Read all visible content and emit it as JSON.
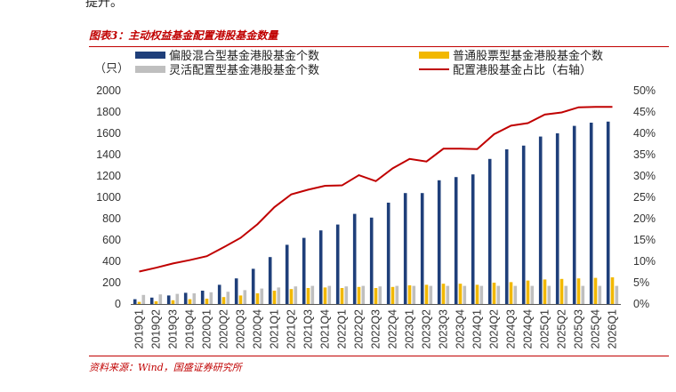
{
  "header_fragment": "提升。",
  "figure_title": "图表3：主动权益基金配置港股基金数量",
  "source": "资料来源：Wind，国盛证券研究所",
  "colors": {
    "series1": "#1f3f7a",
    "series2": "#f2b800",
    "series3": "#bfbfbf",
    "line": "#c00000",
    "accent": "#c00000"
  },
  "chart_data": {
    "type": "bar",
    "title": "主动权益基金配置港股基金数量",
    "ylabel_left": "（只）",
    "ylim": [
      0,
      2000
    ],
    "yticks": [
      0,
      200,
      400,
      600,
      800,
      1000,
      1200,
      1400,
      1600,
      1800,
      2000
    ],
    "ylim_right": [
      0,
      0.5
    ],
    "yticks_right": [
      "0%",
      "5%",
      "10%",
      "15%",
      "20%",
      "25%",
      "30%",
      "35%",
      "40%",
      "45%",
      "50%"
    ],
    "categories": [
      "2019Q1",
      "2019Q2",
      "2019Q3",
      "2019Q4",
      "2020Q1",
      "2020Q2",
      "2020Q3",
      "2020Q4",
      "2021Q1",
      "2021Q2",
      "2021Q3",
      "2021Q4",
      "2022Q1",
      "2022Q2",
      "2022Q3",
      "2022Q4",
      "2023Q1",
      "2023Q2",
      "2023Q3",
      "2023Q4",
      "2024Q1",
      "2024Q2",
      "2024Q3",
      "2024Q4",
      "2025Q1",
      "2025Q2",
      "2025Q3",
      "2025Q4",
      "2026Q1"
    ],
    "series": [
      {
        "name": "偏股混合型基金港股基金个数",
        "axis": "left",
        "kind": "bar",
        "values": [
          45,
          60,
          80,
          105,
          125,
          180,
          240,
          330,
          440,
          555,
          620,
          690,
          745,
          845,
          810,
          950,
          1040,
          1040,
          1160,
          1190,
          1215,
          1360,
          1450,
          1485,
          1570,
          1600,
          1670,
          1700,
          1710
        ]
      },
      {
        "name": "普通股票型基金港股基金个数",
        "axis": "left",
        "kind": "bar",
        "values": [
          20,
          25,
          35,
          45,
          50,
          65,
          80,
          100,
          125,
          140,
          150,
          155,
          150,
          160,
          150,
          160,
          175,
          180,
          190,
          190,
          180,
          200,
          205,
          220,
          230,
          235,
          240,
          245,
          250
        ]
      },
      {
        "name": "灵活配置型基金港股基金个数",
        "axis": "left",
        "kind": "bar",
        "values": [
          85,
          90,
          95,
          100,
          110,
          115,
          130,
          145,
          155,
          165,
          170,
          170,
          165,
          170,
          165,
          170,
          170,
          170,
          170,
          170,
          170,
          170,
          170,
          170,
          170,
          170,
          170,
          170,
          170
        ]
      },
      {
        "name": "配置港股基金占比（右轴）",
        "axis": "right",
        "kind": "line",
        "values": [
          0.076,
          0.085,
          0.095,
          0.103,
          0.112,
          0.133,
          0.155,
          0.187,
          0.227,
          0.257,
          0.268,
          0.277,
          0.278,
          0.302,
          0.288,
          0.318,
          0.34,
          0.334,
          0.364,
          0.364,
          0.363,
          0.398,
          0.418,
          0.424,
          0.444,
          0.449,
          0.461,
          0.462,
          0.462
        ]
      }
    ]
  }
}
